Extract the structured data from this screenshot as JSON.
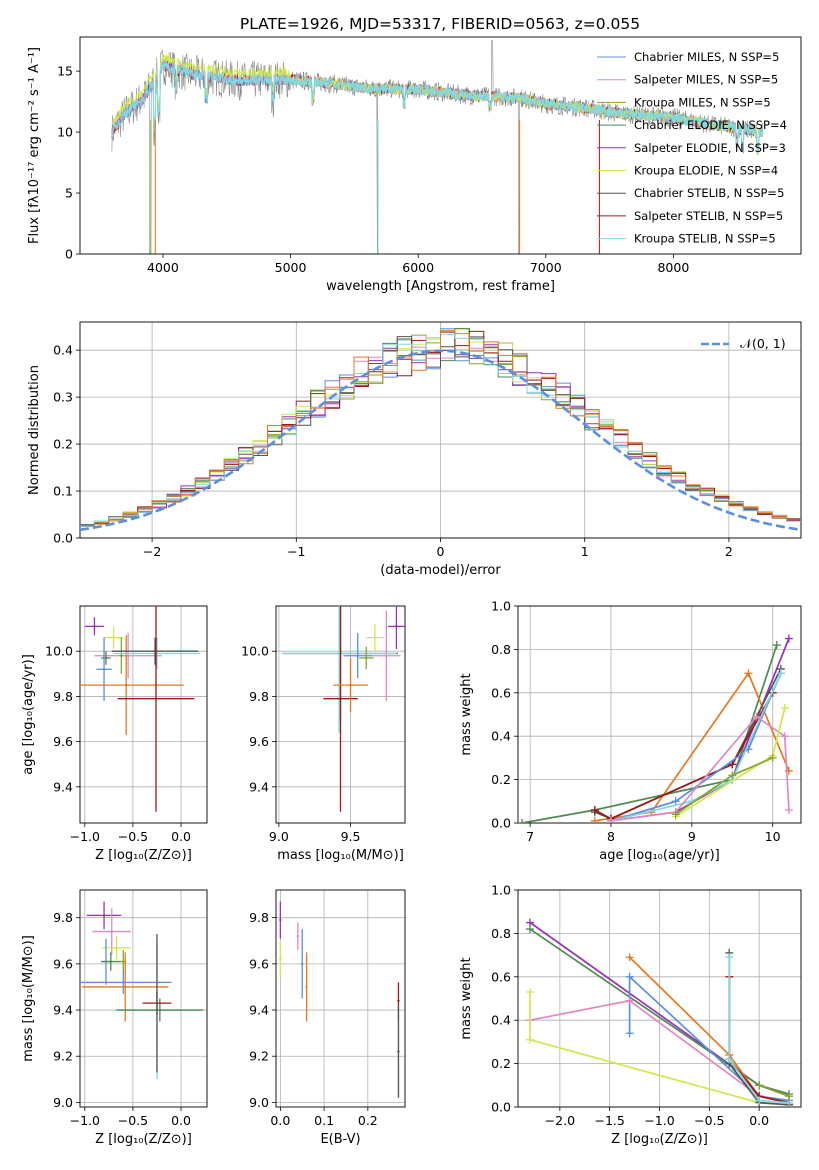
{
  "figure_title": "PLATE=1926, MJD=53317, FIBERID=0563, z=0.055",
  "colors": {
    "cmiles": "#5b8fdf",
    "smiles": "#e487c0",
    "kmiles": "#86a62b",
    "celodie": "#4f8a4f",
    "selodie": "#9b2fbf",
    "kelodie": "#cfe84a",
    "cstelib": "#555555",
    "sstelib": "#a01616",
    "kstelib": "#7fd9df",
    "orange": "#e8781f",
    "gaussian": "#5b8fdf"
  },
  "chart_data": [
    {
      "id": "spectrum",
      "type": "line",
      "title": "PLATE=1926, MJD=53317, FIBERID=0563, z=0.055",
      "xlabel": "wavelength [Angstrom, rest frame]",
      "ylabel": "Flux [fλ10⁻¹⁷ erg cm⁻² s⁻¹ A⁻¹]",
      "xlim": [
        3350,
        9000
      ],
      "ylim": [
        0,
        17.8
      ],
      "xticks": [
        "4000",
        "5000",
        "6000",
        "7000",
        "8000"
      ],
      "yticks": [
        "0",
        "5",
        "10",
        "15"
      ],
      "grid": false,
      "legend_position": "top-right",
      "legend": [
        {
          "label": "Chabrier MILES, N_SSP=5",
          "color": "#5b8fdf"
        },
        {
          "label": "Salpeter MILES, N_SSP=5",
          "color": "#e487c0"
        },
        {
          "label": "Kroupa MILES, N_SSP=5",
          "color": "#86a62b"
        },
        {
          "label": "Chabrier ELODIE, N_SSP=4",
          "color": "#4f8a4f"
        },
        {
          "label": "Salpeter ELODIE, N_SSP=3",
          "color": "#9b2fbf"
        },
        {
          "label": "Kroupa ELODIE, N_SSP=4",
          "color": "#cfe84a"
        },
        {
          "label": "Chabrier STELIB, N_SSP=5",
          "color": "#555555"
        },
        {
          "label": "Salpeter STELIB, N_SSP=5",
          "color": "#a01616"
        },
        {
          "label": "Kroupa STELIB, N_SSP=5",
          "color": "#7fd9df"
        }
      ],
      "continuum": [
        [
          3600,
          10.0
        ],
        [
          3700,
          11.5
        ],
        [
          3850,
          12.8
        ],
        [
          3950,
          14.5
        ],
        [
          4000,
          15.5
        ],
        [
          4200,
          14.8
        ],
        [
          4400,
          14.5
        ],
        [
          4600,
          14.2
        ],
        [
          4800,
          14.3
        ],
        [
          5000,
          14.3
        ],
        [
          5300,
          14.0
        ],
        [
          5600,
          13.6
        ],
        [
          6000,
          13.5
        ],
        [
          6400,
          13.0
        ],
        [
          6800,
          12.8
        ],
        [
          7000,
          12.3
        ],
        [
          7300,
          12.0
        ],
        [
          7600,
          11.5
        ],
        [
          8000,
          11.2
        ],
        [
          8300,
          10.6
        ],
        [
          8500,
          10.3
        ],
        [
          8700,
          10.0
        ]
      ]
    },
    {
      "id": "residuals",
      "type": "line",
      "xlabel": "(data-model)/error",
      "ylabel": "Normed distribution",
      "xlim": [
        -2.5,
        2.5
      ],
      "ylim": [
        0,
        0.46
      ],
      "xticks": [
        "−2",
        "−1",
        "0",
        "1",
        "2"
      ],
      "yticks": [
        "0.0",
        "0.1",
        "0.2",
        "0.3",
        "0.4"
      ],
      "grid": true,
      "legend_position": "top-right",
      "legend": [
        {
          "label": "𝒩(0, 1)",
          "color": "#5b8fdf",
          "style": "dashed"
        }
      ],
      "bin_width": 0.1
    },
    {
      "id": "age_vs_z",
      "type": "scatter",
      "xlabel": "Z [log₁₀(Z/Z⊙)]",
      "ylabel": "age  [log₁₀(age/yr)]",
      "xlim": [
        -1.05,
        0.27
      ],
      "ylim": [
        9.24,
        10.2
      ],
      "xticks": [
        "−1.0",
        "−0.5",
        "0.0"
      ],
      "yticks": [
        "9.4",
        "9.6",
        "9.8",
        "10.0"
      ],
      "grid": true,
      "points": [
        {
          "x": -0.9,
          "y": 10.11,
          "xerr": 0.1,
          "yerr": 0.04,
          "c": "selodie"
        },
        {
          "x": -0.7,
          "y": 10.06,
          "xerr": 0.1,
          "yerr": 0.05,
          "c": "kelodie"
        },
        {
          "x": -0.55,
          "y": 9.98,
          "xerr": 0.35,
          "yerr": 0.1,
          "c": "smiles"
        },
        {
          "x": -0.78,
          "y": 9.97,
          "xerr": 0.05,
          "yerr": 0.03,
          "c": "celodie"
        },
        {
          "x": -0.8,
          "y": 9.92,
          "xerr": 0.08,
          "yerr": 0.14,
          "c": "cmiles"
        },
        {
          "x": -0.57,
          "y": 9.85,
          "xerr": 0.6,
          "yerr": 0.22,
          "c": "orange"
        },
        {
          "x": -0.62,
          "y": 9.98,
          "xerr": 0.02,
          "yerr": 0.08,
          "c": "kmiles"
        },
        {
          "x": -0.25,
          "y": 9.99,
          "xerr": 0.45,
          "yerr": 0.07,
          "c": "kstelib"
        },
        {
          "x": -0.27,
          "y": 10.0,
          "xerr": 0.45,
          "yerr": 0.06,
          "c": "cstelib"
        },
        {
          "x": -0.26,
          "y": 9.79,
          "xerr": 0.4,
          "yerr": 0.5,
          "c": "sstelib"
        }
      ]
    },
    {
      "id": "age_vs_mass",
      "type": "scatter",
      "xlabel": "mass [log₁₀(M/M⊙)]",
      "ylabel": "",
      "xlim": [
        8.98,
        9.88
      ],
      "ylim": [
        9.24,
        10.2
      ],
      "xticks": [
        "9.0",
        "9.5"
      ],
      "yticks": [
        "9.4",
        "9.6",
        "9.8",
        "10.0"
      ],
      "grid": true,
      "points": [
        {
          "x": 9.43,
          "y": 9.99,
          "xerr": 0.4,
          "yerr": 0.3,
          "c": "cstelib"
        },
        {
          "x": 9.42,
          "y": 9.99,
          "xerr": 0.4,
          "yerr": 0.35,
          "c": "kstelib"
        },
        {
          "x": 9.43,
          "y": 9.79,
          "xerr": 0.12,
          "yerr": 0.5,
          "c": "sstelib"
        },
        {
          "x": 9.5,
          "y": 9.85,
          "xerr": 0.12,
          "yerr": 0.12,
          "c": "orange"
        },
        {
          "x": 9.55,
          "y": 9.98,
          "xerr": 0.1,
          "yerr": 0.1,
          "c": "cmiles"
        },
        {
          "x": 9.75,
          "y": 9.98,
          "xerr": 0.1,
          "yerr": 0.2,
          "c": "smiles"
        },
        {
          "x": 9.82,
          "y": 10.11,
          "xerr": 0.06,
          "yerr": 0.1,
          "c": "selodie"
        },
        {
          "x": 9.67,
          "y": 10.06,
          "xerr": 0.06,
          "yerr": 0.06,
          "c": "kelodie"
        },
        {
          "x": 9.61,
          "y": 9.97,
          "xerr": 0.05,
          "yerr": 0.05,
          "c": "kmiles"
        }
      ]
    },
    {
      "id": "mass_weight_vs_age",
      "type": "line",
      "xlabel": "age  [log₁₀(age/yr)]",
      "ylabel": "mass weight",
      "xlim": [
        6.85,
        10.35
      ],
      "ylim": [
        0,
        1.0
      ],
      "xticks": [
        "7",
        "8",
        "9",
        "10"
      ],
      "yticks": [
        "0.0",
        "0.2",
        "0.4",
        "0.6",
        "0.8",
        "1.0"
      ],
      "grid": true,
      "series": [
        {
          "c": "celodie",
          "x": [
            6.9,
            7.8,
            9.5,
            10.05
          ],
          "y": [
            0.0,
            0.06,
            0.2,
            0.82
          ]
        },
        {
          "c": "selodie",
          "x": [
            8.0,
            8.8,
            9.5,
            10.2
          ],
          "y": [
            0.01,
            0.05,
            0.2,
            0.85
          ]
        },
        {
          "c": "orange",
          "x": [
            7.8,
            8.5,
            9.7,
            10.2
          ],
          "y": [
            0.01,
            0.05,
            0.69,
            0.24
          ]
        },
        {
          "c": "cstelib",
          "x": [
            7.8,
            8.0,
            9.5,
            10.1
          ],
          "y": [
            0.05,
            0.02,
            0.27,
            0.71
          ]
        },
        {
          "c": "sstelib",
          "x": [
            7.8,
            8.0,
            9.5,
            10.0
          ],
          "y": [
            0.06,
            0.02,
            0.27,
            0.6
          ]
        },
        {
          "c": "cmiles",
          "x": [
            8.0,
            8.8,
            9.7,
            10.1
          ],
          "y": [
            0.01,
            0.1,
            0.34,
            0.69
          ]
        },
        {
          "c": "kstelib",
          "x": [
            8.0,
            9.0,
            9.5,
            10.1
          ],
          "y": [
            0.01,
            0.1,
            0.2,
            0.69
          ]
        },
        {
          "c": "smiles",
          "x": [
            8.0,
            8.8,
            9.8,
            10.15,
            10.2
          ],
          "y": [
            0.01,
            0.05,
            0.49,
            0.4,
            0.06
          ]
        },
        {
          "c": "kelodie",
          "x": [
            8.8,
            10.0,
            10.15
          ],
          "y": [
            0.03,
            0.31,
            0.53
          ]
        },
        {
          "c": "kmiles",
          "x": [
            8.8,
            9.5,
            10.0
          ],
          "y": [
            0.04,
            0.22,
            0.3
          ]
        }
      ]
    },
    {
      "id": "mass_vs_z",
      "type": "scatter",
      "xlabel": "Z [log₁₀(Z/Z⊙)]",
      "ylabel": "mass [log₁₀(M/M⊙)]",
      "xlim": [
        -1.05,
        0.27
      ],
      "ylim": [
        8.98,
        9.92
      ],
      "xticks": [
        "−1.0",
        "−0.5",
        "0.0"
      ],
      "yticks": [
        "9.0",
        "9.2",
        "9.4",
        "9.6",
        "9.8"
      ],
      "grid": true,
      "points": [
        {
          "x": -0.8,
          "y": 9.81,
          "xerr": 0.18,
          "yerr": 0.06,
          "c": "selodie"
        },
        {
          "x": -0.72,
          "y": 9.74,
          "xerr": 0.2,
          "yerr": 0.1,
          "c": "smiles"
        },
        {
          "x": -0.67,
          "y": 9.67,
          "xerr": 0.15,
          "yerr": 0.05,
          "c": "kelodie"
        },
        {
          "x": -0.78,
          "y": 9.61,
          "xerr": 0.05,
          "yerr": 0.1,
          "c": "cmiles"
        },
        {
          "x": -0.73,
          "y": 9.61,
          "xerr": 0.1,
          "yerr": 0.04,
          "c": "celodie"
        },
        {
          "x": -0.6,
          "y": 9.61,
          "xerr": 0.03,
          "yerr": 0.05,
          "c": "kmiles"
        },
        {
          "x": -0.58,
          "y": 9.5,
          "xerr": 0.45,
          "yerr": 0.15,
          "c": "orange"
        },
        {
          "x": -0.6,
          "y": 9.52,
          "xerr": 0.5,
          "yerr": 0.05,
          "c": "cmiles"
        },
        {
          "x": -0.25,
          "y": 9.4,
          "xerr": 0.45,
          "yerr": 0.3,
          "c": "kstelib"
        },
        {
          "x": -0.22,
          "y": 9.4,
          "xerr": 0.45,
          "yerr": 0.05,
          "c": "celodie"
        },
        {
          "x": -0.25,
          "y": 9.43,
          "xerr": 0.15,
          "yerr": 0.05,
          "c": "sstelib"
        },
        {
          "x": -0.25,
          "y": 9.43,
          "xerr": 0.02,
          "yerr": 0.3,
          "c": "cstelib"
        }
      ]
    },
    {
      "id": "mass_vs_ebv",
      "type": "scatter",
      "xlabel": "E(B-V)",
      "ylabel": "",
      "xlim": [
        -0.01,
        0.285
      ],
      "ylim": [
        8.98,
        9.92
      ],
      "xticks": [
        "0.0",
        "0.1",
        "0.2"
      ],
      "yticks": [
        "9.0",
        "9.2",
        "9.4",
        "9.6",
        "9.8"
      ],
      "grid": true,
      "points": [
        {
          "x": 0.0,
          "y": 9.79,
          "xerr": 0,
          "yerr": 0.08,
          "c": "selodie"
        },
        {
          "x": 0.0,
          "y": 9.62,
          "xerr": 0,
          "yerr": 0.08,
          "c": "kelodie"
        },
        {
          "x": 0.04,
          "y": 9.72,
          "xerr": 0,
          "yerr": 0.06,
          "c": "smiles"
        },
        {
          "x": 0.05,
          "y": 9.6,
          "xerr": 0,
          "yerr": 0.15,
          "c": "cmiles"
        },
        {
          "x": 0.06,
          "y": 9.5,
          "xerr": 0,
          "yerr": 0.15,
          "c": "orange"
        },
        {
          "x": 0.27,
          "y": 9.44,
          "xerr": 0,
          "yerr": 0.08,
          "c": "sstelib"
        },
        {
          "x": 0.27,
          "y": 9.22,
          "xerr": 0,
          "yerr": 0.2,
          "c": "kstelib"
        },
        {
          "x": 0.27,
          "y": 9.22,
          "xerr": 0,
          "yerr": 0.2,
          "c": "cstelib"
        }
      ]
    },
    {
      "id": "mass_weight_vs_z",
      "type": "line",
      "xlabel": "Z [log₁₀(Z/Z⊙)]",
      "ylabel": "mass weight",
      "xlim": [
        -2.42,
        0.42
      ],
      "ylim": [
        0,
        1.0
      ],
      "xticks": [
        "−2.0",
        "−1.5",
        "−1.0",
        "−0.5",
        "0.0"
      ],
      "yticks": [
        "0.0",
        "0.2",
        "0.4",
        "0.6",
        "0.8",
        "1.0"
      ],
      "grid": true,
      "series": [
        {
          "c": "selodie",
          "x": [
            -2.3,
            0.0,
            0.3
          ],
          "y": [
            0.85,
            0.1,
            0.05
          ]
        },
        {
          "c": "celodie",
          "x": [
            -2.3,
            0.0,
            0.3
          ],
          "y": [
            0.82,
            0.1,
            0.06
          ]
        },
        {
          "c": "orange",
          "x": [
            -1.3,
            -0.3,
            0.0,
            0.3
          ],
          "y": [
            0.69,
            0.24,
            0.05,
            0.02
          ]
        },
        {
          "c": "cmiles",
          "x": [
            -1.3,
            -1.3,
            0.0,
            0.3
          ],
          "y": [
            0.34,
            0.6,
            0.05,
            0.03
          ]
        },
        {
          "c": "smiles",
          "x": [
            -2.3,
            -1.3,
            0.0,
            0.3
          ],
          "y": [
            0.4,
            0.49,
            0.05,
            0.02
          ]
        },
        {
          "c": "kelodie",
          "x": [
            -2.3,
            -2.3,
            0.0,
            0.3
          ],
          "y": [
            0.53,
            0.31,
            0.02,
            0.01
          ]
        },
        {
          "c": "cstelib",
          "x": [
            -0.3,
            -0.3,
            0.0,
            0.3
          ],
          "y": [
            0.71,
            0.2,
            0.02,
            0.01
          ]
        },
        {
          "c": "sstelib",
          "x": [
            -0.3,
            -0.3,
            0.0,
            0.3
          ],
          "y": [
            0.6,
            0.22,
            0.05,
            0.02
          ]
        },
        {
          "c": "kstelib",
          "x": [
            -0.3,
            -0.3,
            0.0,
            0.3
          ],
          "y": [
            0.69,
            0.22,
            0.03,
            0.02
          ]
        },
        {
          "c": "kmiles",
          "x": [
            0.0,
            0.3
          ],
          "y": [
            0.1,
            0.05
          ]
        }
      ]
    }
  ]
}
